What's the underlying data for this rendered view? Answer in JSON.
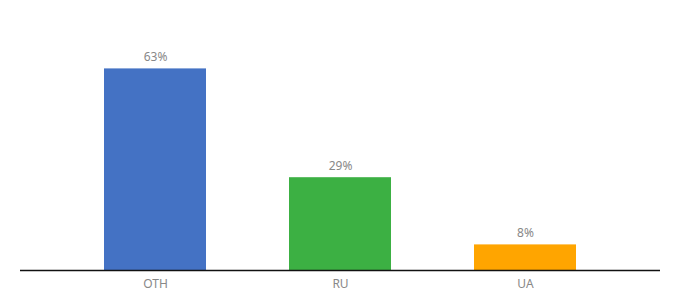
{
  "chart_data": {
    "type": "bar",
    "categories": [
      "OTH",
      "RU",
      "UA"
    ],
    "values": [
      63,
      29,
      8
    ],
    "value_labels": [
      "63%",
      "29%",
      "8%"
    ],
    "colors": [
      "#4472C4",
      "#3CB043",
      "#FFA500"
    ],
    "ylim": [
      0,
      75
    ],
    "data_labels": true,
    "tick_labels": "x",
    "grid": false
  }
}
